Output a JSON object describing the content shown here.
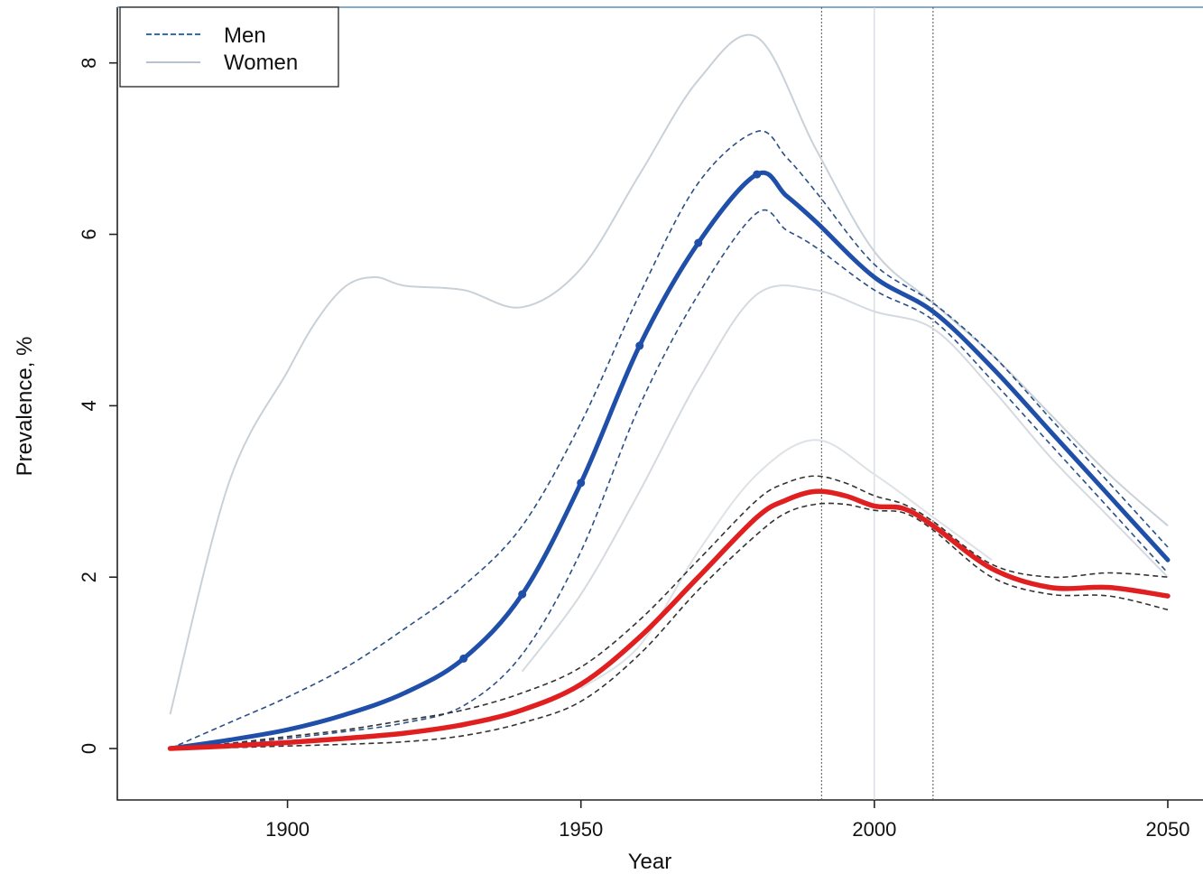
{
  "chart_data": {
    "type": "line",
    "xlabel": "Year",
    "ylabel": "Prevalence, %",
    "xlim": [
      1871,
      2056
    ],
    "ylim": [
      -0.6,
      8.65
    ],
    "xticks": [
      1900,
      1950,
      2000,
      2050
    ],
    "yticks": [
      0,
      2,
      4,
      6,
      8
    ],
    "grid": false,
    "legend": {
      "position": "top-left",
      "entries": [
        {
          "label": "Men",
          "color": "#2f6fb5",
          "style": "dashed"
        },
        {
          "label": "Women",
          "color": "#b8c2cc",
          "style": "solid"
        }
      ]
    },
    "vlines": [
      1991,
      2000,
      2010
    ],
    "series": [
      {
        "name": "Men",
        "color": "#1f4fa8",
        "x": [
          1880,
          1890,
          1900,
          1910,
          1920,
          1930,
          1940,
          1950,
          1960,
          1970,
          1980,
          1985,
          1990,
          2000,
          2010,
          2020,
          2030,
          2040,
          2050
        ],
        "y": [
          0,
          0.1,
          0.22,
          0.4,
          0.65,
          1.05,
          1.8,
          3.1,
          4.7,
          5.9,
          6.7,
          6.45,
          6.15,
          5.5,
          5.1,
          4.45,
          3.7,
          2.95,
          2.2
        ],
        "upper": [
          0,
          0.3,
          0.6,
          0.95,
          1.4,
          1.9,
          2.6,
          3.8,
          5.3,
          6.6,
          7.2,
          6.9,
          6.5,
          5.65,
          5.2,
          4.6,
          3.85,
          3.1,
          2.35
        ],
        "lower": [
          0,
          0.05,
          0.12,
          0.2,
          0.3,
          0.5,
          1.1,
          2.3,
          4.0,
          5.3,
          6.25,
          6.05,
          5.85,
          5.35,
          5.0,
          4.3,
          3.55,
          2.8,
          2.05
        ]
      },
      {
        "name": "Women",
        "color": "#e02020",
        "x": [
          1880,
          1890,
          1900,
          1910,
          1920,
          1930,
          1940,
          1950,
          1960,
          1970,
          1980,
          1985,
          1990,
          1995,
          2000,
          2005,
          2010,
          2020,
          2030,
          2040,
          2050
        ],
        "y": [
          0,
          0.03,
          0.07,
          0.12,
          0.18,
          0.28,
          0.45,
          0.75,
          1.3,
          2.0,
          2.7,
          2.9,
          3.0,
          2.95,
          2.83,
          2.8,
          2.6,
          2.1,
          1.88,
          1.88,
          1.78
        ],
        "upper": [
          0,
          0.06,
          0.14,
          0.22,
          0.33,
          0.45,
          0.65,
          0.95,
          1.5,
          2.2,
          2.9,
          3.1,
          3.18,
          3.1,
          2.95,
          2.85,
          2.65,
          2.15,
          2.0,
          2.05,
          2.0
        ],
        "lower": [
          0,
          0.01,
          0.03,
          0.05,
          0.08,
          0.15,
          0.3,
          0.55,
          1.1,
          1.85,
          2.5,
          2.75,
          2.85,
          2.85,
          2.78,
          2.75,
          2.55,
          2.0,
          1.8,
          1.78,
          1.62
        ]
      },
      {
        "name": "",
        "color": "#c9d1d8",
        "x": [
          1880,
          1890,
          1900,
          1905,
          1910,
          1915,
          1920,
          1930,
          1940,
          1950,
          1960,
          1970,
          1980,
          1990,
          2000,
          2010,
          2020,
          2030,
          2040,
          2050
        ],
        "y": [
          0.4,
          3.1,
          4.4,
          5.0,
          5.4,
          5.5,
          5.4,
          5.35,
          5.15,
          5.6,
          6.7,
          7.8,
          8.3,
          7.0,
          5.8,
          5.2,
          4.6,
          3.9,
          3.2,
          2.6
        ]
      },
      {
        "name": "",
        "color": "#d4dae0",
        "x": [
          1940,
          1950,
          1960,
          1970,
          1980,
          1990,
          2000,
          2010,
          2020,
          2030,
          2040,
          2050
        ],
        "y": [
          0.9,
          1.8,
          3.0,
          4.3,
          5.3,
          5.35,
          5.1,
          4.9,
          4.2,
          3.4,
          2.7,
          2.0
        ]
      },
      {
        "name": "",
        "color": "#dde2e7",
        "x": [
          1950,
          1960,
          1970,
          1980,
          1990,
          2000,
          2010,
          2020
        ],
        "y": [
          0.7,
          1.2,
          2.3,
          3.2,
          3.6,
          3.2,
          2.7,
          2.2
        ]
      }
    ]
  }
}
